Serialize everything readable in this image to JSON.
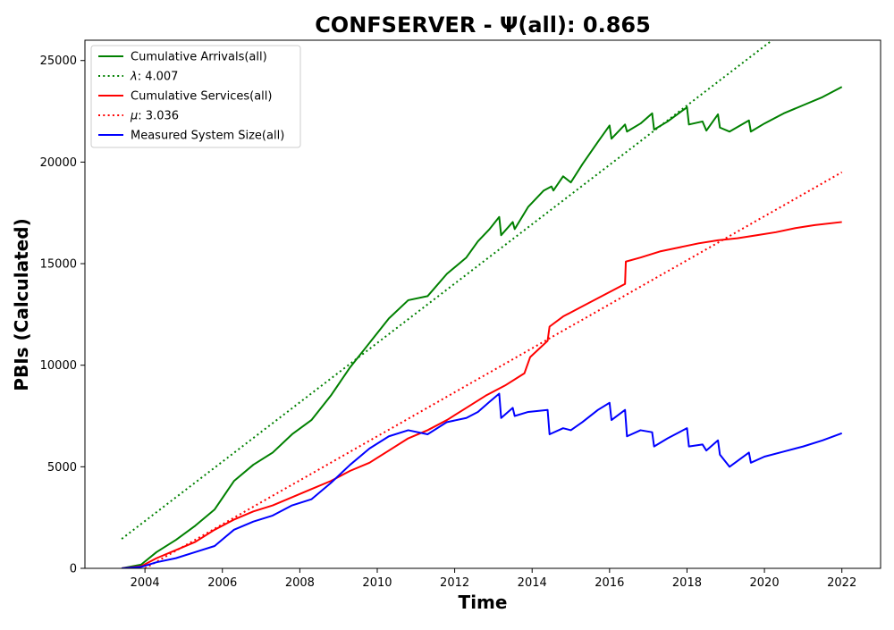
{
  "chart_data": {
    "type": "line",
    "title": "CONFSERVER -  Ψ(all): 0.865",
    "xlabel": "Time",
    "ylabel": "PBIs (Calculated)",
    "xlim": [
      2002.45,
      2023.0
    ],
    "ylim": [
      0,
      26000
    ],
    "x_ticks": [
      2004,
      2006,
      2008,
      2010,
      2012,
      2014,
      2016,
      2018,
      2020,
      2022
    ],
    "y_ticks": [
      0,
      5000,
      10000,
      15000,
      20000,
      25000
    ],
    "grid": false,
    "legend_position": "top-left",
    "series": [
      {
        "name": "Cumulative Arrivals(all)",
        "color": "#008000",
        "style": "solid",
        "points": [
          [
            2003.4,
            0
          ],
          [
            2003.9,
            180
          ],
          [
            2004.3,
            800
          ],
          [
            2004.8,
            1400
          ],
          [
            2005.3,
            2100
          ],
          [
            2005.8,
            2900
          ],
          [
            2006.3,
            4300
          ],
          [
            2006.8,
            5100
          ],
          [
            2007.3,
            5700
          ],
          [
            2007.8,
            6600
          ],
          [
            2008.3,
            7300
          ],
          [
            2008.8,
            8500
          ],
          [
            2009.3,
            9900
          ],
          [
            2009.8,
            11100
          ],
          [
            2010.3,
            12300
          ],
          [
            2010.8,
            13200
          ],
          [
            2011.3,
            13400
          ],
          [
            2011.8,
            14500
          ],
          [
            2012.3,
            15300
          ],
          [
            2012.6,
            16100
          ],
          [
            2012.9,
            16700
          ],
          [
            2013.15,
            17300
          ],
          [
            2013.2,
            16400
          ],
          [
            2013.5,
            17050
          ],
          [
            2013.55,
            16700
          ],
          [
            2013.9,
            17800
          ],
          [
            2014.3,
            18600
          ],
          [
            2014.5,
            18800
          ],
          [
            2014.55,
            18600
          ],
          [
            2014.8,
            19300
          ],
          [
            2015.0,
            19000
          ],
          [
            2015.3,
            19900
          ],
          [
            2015.7,
            21000
          ],
          [
            2016.0,
            21800
          ],
          [
            2016.05,
            21150
          ],
          [
            2016.4,
            21850
          ],
          [
            2016.45,
            21500
          ],
          [
            2016.8,
            21900
          ],
          [
            2017.1,
            22400
          ],
          [
            2017.15,
            21600
          ],
          [
            2017.5,
            22000
          ],
          [
            2018.0,
            22700
          ],
          [
            2018.05,
            21850
          ],
          [
            2018.4,
            22000
          ],
          [
            2018.5,
            21550
          ],
          [
            2018.8,
            22350
          ],
          [
            2018.85,
            21700
          ],
          [
            2019.1,
            21500
          ],
          [
            2019.6,
            22050
          ],
          [
            2019.65,
            21500
          ],
          [
            2020.0,
            21900
          ],
          [
            2020.5,
            22400
          ],
          [
            2021.0,
            22800
          ],
          [
            2021.5,
            23200
          ],
          [
            2022.0,
            23700
          ]
        ]
      },
      {
        "name": "λ: 4.007",
        "label_symbol": "λ",
        "label_value": ": 4.007",
        "color": "#008000",
        "style": "dotted",
        "points": [
          [
            2003.4,
            1450
          ],
          [
            2020.2,
            26000
          ]
        ]
      },
      {
        "name": "Cumulative Services(all)",
        "color": "#ff0000",
        "style": "solid",
        "points": [
          [
            2003.4,
            0
          ],
          [
            2003.9,
            100
          ],
          [
            2004.3,
            500
          ],
          [
            2004.8,
            900
          ],
          [
            2005.3,
            1300
          ],
          [
            2005.8,
            1900
          ],
          [
            2006.3,
            2400
          ],
          [
            2006.8,
            2800
          ],
          [
            2007.3,
            3100
          ],
          [
            2007.8,
            3500
          ],
          [
            2008.3,
            3900
          ],
          [
            2008.8,
            4300
          ],
          [
            2009.3,
            4800
          ],
          [
            2009.8,
            5200
          ],
          [
            2010.3,
            5800
          ],
          [
            2010.8,
            6400
          ],
          [
            2011.3,
            6800
          ],
          [
            2011.8,
            7300
          ],
          [
            2012.3,
            7900
          ],
          [
            2012.8,
            8500
          ],
          [
            2013.3,
            9000
          ],
          [
            2013.8,
            9600
          ],
          [
            2013.95,
            10400
          ],
          [
            2014.4,
            11200
          ],
          [
            2014.45,
            11900
          ],
          [
            2014.8,
            12400
          ],
          [
            2015.3,
            12900
          ],
          [
            2015.8,
            13400
          ],
          [
            2016.3,
            13900
          ],
          [
            2016.4,
            14000
          ],
          [
            2016.42,
            15100
          ],
          [
            2016.8,
            15300
          ],
          [
            2017.3,
            15600
          ],
          [
            2017.8,
            15800
          ],
          [
            2018.3,
            16000
          ],
          [
            2018.8,
            16150
          ],
          [
            2019.3,
            16250
          ],
          [
            2019.8,
            16400
          ],
          [
            2020.3,
            16550
          ],
          [
            2020.8,
            16750
          ],
          [
            2021.3,
            16900
          ],
          [
            2022.0,
            17050
          ]
        ]
      },
      {
        "name": "μ: 3.036",
        "label_symbol": "μ",
        "label_value": ": 3.036",
        "color": "#ff0000",
        "style": "dotted",
        "points": [
          [
            2004.0,
            0
          ],
          [
            2022.0,
            19500
          ]
        ]
      },
      {
        "name": "Measured System Size(all)",
        "color": "#0000ff",
        "style": "solid",
        "points": [
          [
            2003.4,
            0
          ],
          [
            2003.9,
            70
          ],
          [
            2004.3,
            300
          ],
          [
            2004.8,
            500
          ],
          [
            2005.3,
            800
          ],
          [
            2005.8,
            1100
          ],
          [
            2006.3,
            1900
          ],
          [
            2006.8,
            2300
          ],
          [
            2007.3,
            2600
          ],
          [
            2007.8,
            3100
          ],
          [
            2008.3,
            3400
          ],
          [
            2008.8,
            4200
          ],
          [
            2009.3,
            5100
          ],
          [
            2009.8,
            5900
          ],
          [
            2010.3,
            6500
          ],
          [
            2010.8,
            6800
          ],
          [
            2011.3,
            6600
          ],
          [
            2011.8,
            7200
          ],
          [
            2012.3,
            7400
          ],
          [
            2012.6,
            7700
          ],
          [
            2012.9,
            8200
          ],
          [
            2013.15,
            8600
          ],
          [
            2013.2,
            7400
          ],
          [
            2013.5,
            7900
          ],
          [
            2013.55,
            7500
          ],
          [
            2013.9,
            7700
          ],
          [
            2014.4,
            7800
          ],
          [
            2014.45,
            6600
          ],
          [
            2014.8,
            6900
          ],
          [
            2015.0,
            6800
          ],
          [
            2015.3,
            7200
          ],
          [
            2015.7,
            7800
          ],
          [
            2016.0,
            8150
          ],
          [
            2016.05,
            7300
          ],
          [
            2016.4,
            7800
          ],
          [
            2016.45,
            6500
          ],
          [
            2016.8,
            6800
          ],
          [
            2017.1,
            6700
          ],
          [
            2017.15,
            6000
          ],
          [
            2017.5,
            6400
          ],
          [
            2018.0,
            6900
          ],
          [
            2018.05,
            6000
          ],
          [
            2018.4,
            6100
          ],
          [
            2018.5,
            5800
          ],
          [
            2018.8,
            6300
          ],
          [
            2018.85,
            5600
          ],
          [
            2019.1,
            5000
          ],
          [
            2019.6,
            5700
          ],
          [
            2019.65,
            5200
          ],
          [
            2020.0,
            5500
          ],
          [
            2020.5,
            5750
          ],
          [
            2021.0,
            6000
          ],
          [
            2021.5,
            6300
          ],
          [
            2022.0,
            6650
          ]
        ]
      }
    ]
  }
}
